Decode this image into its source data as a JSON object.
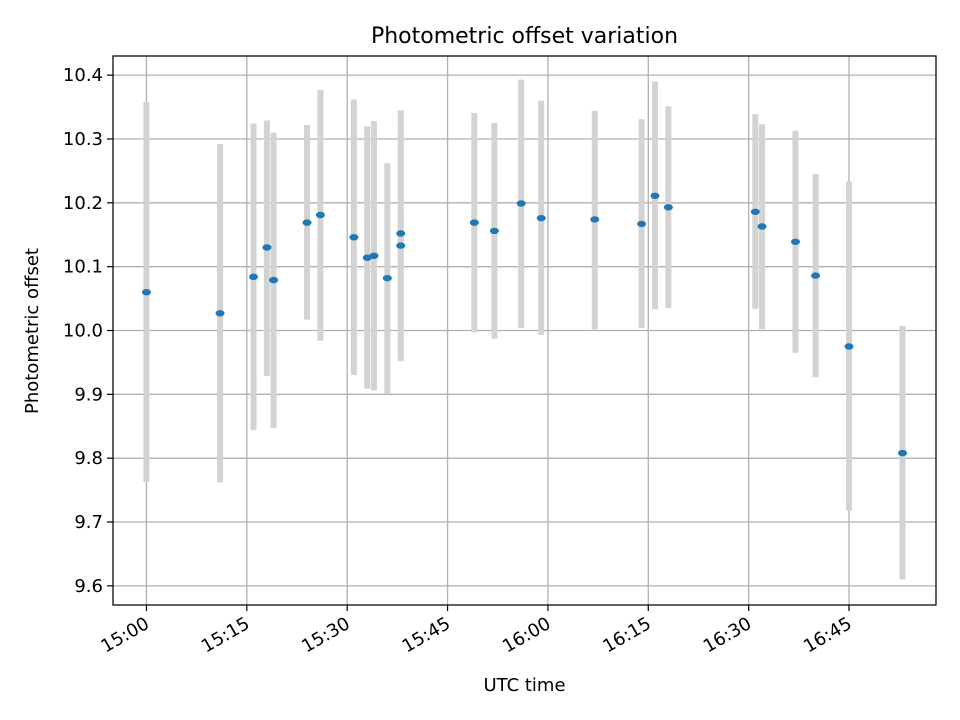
{
  "chart_data": {
    "type": "scatter",
    "title": "Photometric offset variation",
    "xlabel": "UTC time",
    "ylabel": "Photometric offset",
    "xlim": [
      "14:55",
      "16:58"
    ],
    "ylim": [
      9.57,
      10.43
    ],
    "x_ticks": [
      "15:00",
      "15:15",
      "15:30",
      "15:45",
      "16:00",
      "16:15",
      "16:30",
      "16:45"
    ],
    "y_ticks": [
      "9.6",
      "9.7",
      "9.8",
      "9.9",
      "10.0",
      "10.1",
      "10.2",
      "10.3",
      "10.4"
    ],
    "grid": true,
    "errorbar_color": "#d3d3d3",
    "point_color": "#1f77b4",
    "points": [
      {
        "x": "15:00",
        "y": 10.06,
        "ylow": 9.763,
        "yhigh": 10.358
      },
      {
        "x": "15:11",
        "y": 10.027,
        "ylow": 9.762,
        "yhigh": 10.292
      },
      {
        "x": "15:16",
        "y": 10.084,
        "ylow": 9.844,
        "yhigh": 10.324
      },
      {
        "x": "15:18",
        "y": 10.13,
        "ylow": 9.929,
        "yhigh": 10.329
      },
      {
        "x": "15:19",
        "y": 10.079,
        "ylow": 9.847,
        "yhigh": 10.31
      },
      {
        "x": "15:24",
        "y": 10.169,
        "ylow": 10.017,
        "yhigh": 10.322
      },
      {
        "x": "15:26",
        "y": 10.181,
        "ylow": 9.984,
        "yhigh": 10.377
      },
      {
        "x": "15:31",
        "y": 10.146,
        "ylow": 9.93,
        "yhigh": 10.362
      },
      {
        "x": "15:33",
        "y": 10.114,
        "ylow": 9.909,
        "yhigh": 10.32
      },
      {
        "x": "15:34",
        "y": 10.117,
        "ylow": 9.906,
        "yhigh": 10.328
      },
      {
        "x": "15:36",
        "y": 10.082,
        "ylow": 9.901,
        "yhigh": 10.262
      },
      {
        "x": "15:38",
        "y": 10.152,
        "ylow": 9.958,
        "yhigh": 10.345
      },
      {
        "x": "15:38",
        "y": 10.133,
        "ylow": 9.952,
        "yhigh": 10.314
      },
      {
        "x": "15:49",
        "y": 10.169,
        "ylow": 9.997,
        "yhigh": 10.341
      },
      {
        "x": "15:52",
        "y": 10.156,
        "ylow": 9.987,
        "yhigh": 10.325
      },
      {
        "x": "15:56",
        "y": 10.199,
        "ylow": 10.004,
        "yhigh": 10.393
      },
      {
        "x": "15:59",
        "y": 10.176,
        "ylow": 9.993,
        "yhigh": 10.36
      },
      {
        "x": "16:07",
        "y": 10.174,
        "ylow": 10.002,
        "yhigh": 10.344
      },
      {
        "x": "16:14",
        "y": 10.167,
        "ylow": 10.004,
        "yhigh": 10.331
      },
      {
        "x": "16:16",
        "y": 10.211,
        "ylow": 10.033,
        "yhigh": 10.39
      },
      {
        "x": "16:18",
        "y": 10.193,
        "ylow": 10.035,
        "yhigh": 10.351
      },
      {
        "x": "16:31",
        "y": 10.186,
        "ylow": 10.034,
        "yhigh": 10.339
      },
      {
        "x": "16:32",
        "y": 10.163,
        "ylow": 10.002,
        "yhigh": 10.323
      },
      {
        "x": "16:37",
        "y": 10.139,
        "ylow": 9.965,
        "yhigh": 10.313
      },
      {
        "x": "16:40",
        "y": 10.086,
        "ylow": 9.927,
        "yhigh": 10.245
      },
      {
        "x": "16:45",
        "y": 9.975,
        "ylow": 9.718,
        "yhigh": 10.233
      },
      {
        "x": "16:53",
        "y": 9.808,
        "ylow": 9.61,
        "yhigh": 10.007
      }
    ]
  }
}
